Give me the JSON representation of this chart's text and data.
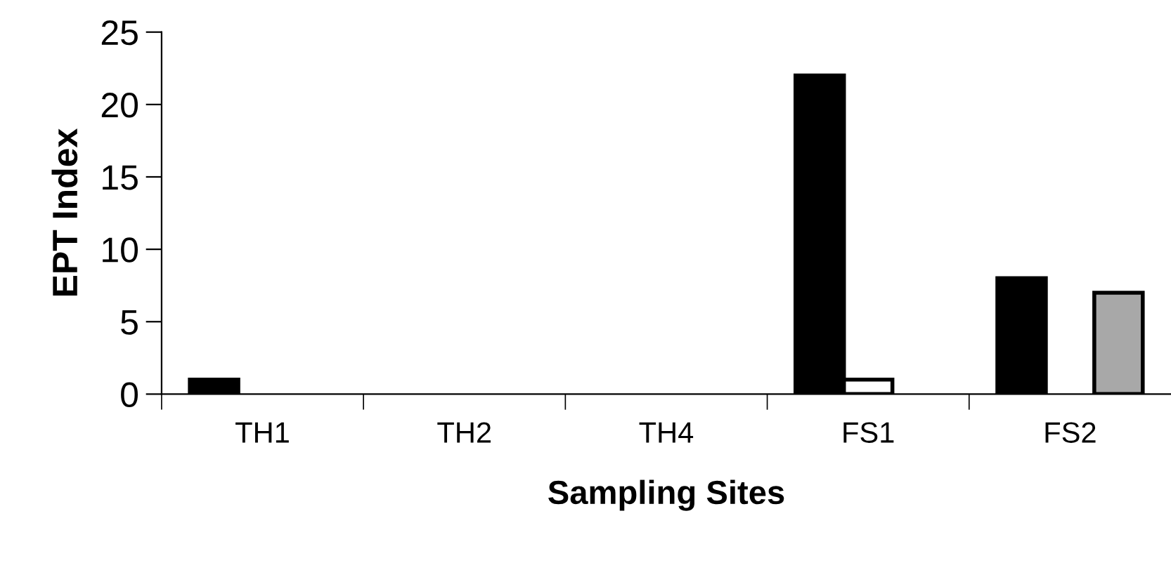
{
  "chart_data": {
    "type": "bar",
    "xlabel": "Sampling Sites",
    "ylabel": "EPT Index",
    "categories": [
      "TH1",
      "TH2",
      "TH4",
      "FS1",
      "FS2"
    ],
    "series": [
      {
        "color": "#000000",
        "values": [
          1,
          0,
          0,
          22,
          8
        ]
      },
      {
        "color": "#ffffff",
        "values": [
          0,
          0,
          0,
          1,
          0
        ]
      },
      {
        "color": "#a8a8a8",
        "values": [
          0,
          0,
          0,
          0,
          7
        ]
      }
    ],
    "ylim": [
      0,
      25
    ],
    "yticks": [
      0,
      5,
      10,
      15,
      20,
      25
    ],
    "grid": false,
    "legend": false
  }
}
